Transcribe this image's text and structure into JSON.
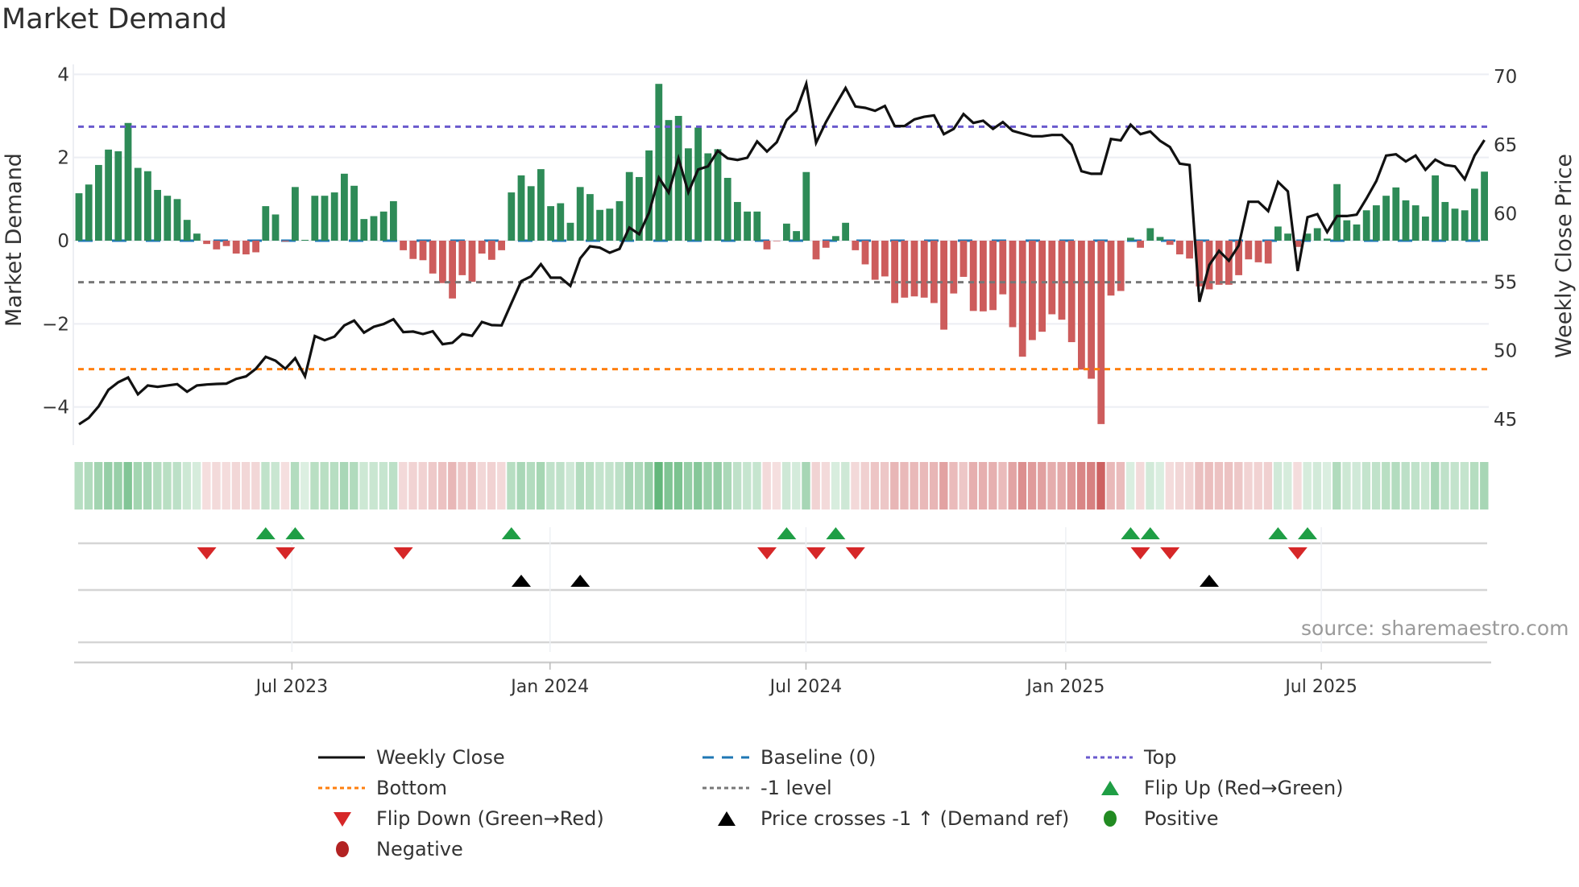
{
  "title": "Market Demand",
  "source": "source: sharemaestro.com",
  "colors": {
    "bar_positive": "#2e8b57",
    "bar_negative": "#cd5c5c",
    "baseline": "#1f77b4",
    "top": "#6a5acd",
    "bottom": "#ff7f0e",
    "minus_one": "#777777",
    "flip_up": "#1f9e45",
    "flip_down": "#d62728",
    "price_cross": "#000000",
    "positive": "#228b22",
    "negative": "#b22222",
    "price_line": "#111111"
  },
  "legend": [
    {
      "label": "Weekly Close",
      "symbol": "solid-line"
    },
    {
      "label": "Baseline (0)",
      "symbol": "dashed-line"
    },
    {
      "label": "Top",
      "symbol": "dotted-line"
    },
    {
      "label": "Bottom",
      "symbol": "dotted-line"
    },
    {
      "label": "-1 level",
      "symbol": "dotted-line"
    },
    {
      "label": "Flip Up (Red→Green)",
      "symbol": "triangle-up"
    },
    {
      "label": "Flip Down (Green→Red)",
      "symbol": "triangle-down"
    },
    {
      "label": "Price crosses -1 ↑ (Demand ref)",
      "symbol": "triangle-up"
    },
    {
      "label": "Positive",
      "symbol": "circle"
    },
    {
      "label": "Negative",
      "symbol": "circle"
    }
  ],
  "chart_data": {
    "type": "bar",
    "title": "Market Demand",
    "ylabel": "Market Demand",
    "y2label": "Weekly Close Price",
    "ylim": [
      -4.8,
      4.4
    ],
    "y2lim": [
      43.6,
      70.8
    ],
    "yticks": [
      {
        "value": 4,
        "label": "4"
      },
      {
        "value": 2,
        "label": "2"
      },
      {
        "value": 0,
        "label": "0"
      },
      {
        "value": -2,
        "label": "−2"
      },
      {
        "value": -4,
        "label": "−4"
      }
    ],
    "y2ticks": [
      {
        "value": 70,
        "label": "70"
      },
      {
        "value": 65,
        "label": "65"
      },
      {
        "value": 60,
        "label": "60"
      },
      {
        "value": 55,
        "label": "55"
      },
      {
        "value": 50,
        "label": "50"
      },
      {
        "value": 45,
        "label": "45"
      }
    ],
    "x_unit": "week index",
    "xticks": [
      {
        "week": 22.67,
        "label": "Jul 2023"
      },
      {
        "week": 48.93,
        "label": "Jan 2024"
      },
      {
        "week": 74.97,
        "label": "Jul 2024"
      },
      {
        "week": 101.4,
        "label": "Jan 2025"
      },
      {
        "week": 127.4,
        "label": "Jul 2025"
      }
    ],
    "levels": {
      "top": 2.74,
      "baseline": 0,
      "minus_one": -1.0,
      "bottom": -3.09
    },
    "demand": [
      1.14,
      1.35,
      1.82,
      2.19,
      2.15,
      2.83,
      1.75,
      1.67,
      1.22,
      1.08,
      1.0,
      0.5,
      0.17,
      -0.08,
      -0.21,
      -0.13,
      -0.31,
      -0.33,
      -0.28,
      0.83,
      0.63,
      -0.02,
      1.29,
      0.02,
      1.08,
      1.08,
      1.16,
      1.61,
      1.32,
      0.52,
      0.59,
      0.7,
      0.95,
      -0.23,
      -0.44,
      -0.47,
      -0.79,
      -1.02,
      -1.39,
      -0.83,
      -0.99,
      -0.31,
      -0.46,
      -0.23,
      1.16,
      1.57,
      1.31,
      1.72,
      0.83,
      0.9,
      0.43,
      1.29,
      1.12,
      0.74,
      0.77,
      0.95,
      1.65,
      1.53,
      2.17,
      3.77,
      2.9,
      3.0,
      2.22,
      2.72,
      2.1,
      2.2,
      1.51,
      0.93,
      0.7,
      0.7,
      -0.21,
      -0.01,
      0.41,
      0.23,
      1.65,
      -0.45,
      -0.17,
      0.11,
      0.43,
      -0.23,
      -0.57,
      -0.94,
      -0.86,
      -1.5,
      -1.37,
      -1.34,
      -1.37,
      -1.5,
      -2.14,
      -1.27,
      -0.87,
      -1.69,
      -1.7,
      -1.67,
      -1.29,
      -2.08,
      -2.79,
      -2.39,
      -2.19,
      -1.77,
      -1.9,
      -2.44,
      -3.1,
      -3.32,
      -4.41,
      -1.32,
      -1.21,
      0.07,
      -0.17,
      0.3,
      0.09,
      -0.1,
      -0.33,
      -0.43,
      -1.1,
      -1.17,
      -1.06,
      -1.06,
      -0.83,
      -0.45,
      -0.52,
      -0.55,
      0.34,
      0.17,
      -0.15,
      0.17,
      0.3,
      0.05,
      1.36,
      0.49,
      0.39,
      0.73,
      0.85,
      1.08,
      1.28,
      0.97,
      0.85,
      0.58,
      1.57,
      0.93,
      0.77,
      0.73,
      1.25,
      1.66
    ],
    "weekly_close": [
      44.62,
      45.09,
      45.93,
      47.14,
      47.69,
      48.04,
      46.81,
      47.46,
      47.36,
      47.46,
      47.55,
      47.0,
      47.46,
      47.53,
      47.57,
      47.59,
      47.94,
      48.12,
      48.67,
      49.55,
      49.26,
      48.67,
      49.45,
      48.12,
      51.06,
      50.76,
      51.02,
      51.84,
      52.19,
      51.31,
      51.74,
      51.94,
      52.29,
      51.35,
      51.39,
      51.21,
      51.41,
      50.47,
      50.57,
      51.21,
      51.08,
      52.09,
      51.86,
      51.84,
      53.46,
      55.07,
      55.42,
      56.3,
      55.32,
      55.32,
      54.72,
      56.73,
      57.61,
      57.51,
      57.14,
      57.42,
      58.98,
      58.49,
      60.06,
      62.62,
      61.53,
      64.03,
      61.55,
      63.21,
      63.44,
      64.58,
      64.03,
      63.91,
      64.07,
      65.26,
      64.52,
      65.2,
      66.81,
      67.51,
      69.47,
      65.17,
      66.67,
      67.94,
      69.16,
      67.81,
      67.71,
      67.49,
      67.85,
      66.38,
      66.38,
      66.87,
      67.06,
      67.16,
      65.79,
      66.18,
      67.26,
      66.61,
      66.77,
      66.18,
      66.67,
      66.03,
      65.83,
      65.64,
      65.64,
      65.73,
      65.73,
      65.01,
      63.09,
      62.9,
      62.9,
      65.44,
      65.34,
      66.48,
      65.79,
      65.99,
      65.3,
      64.85,
      63.64,
      63.54,
      53.56,
      56.24,
      57.28,
      56.56,
      57.67,
      60.86,
      60.86,
      60.18,
      62.31,
      61.62,
      55.81,
      59.73,
      59.96,
      58.65,
      59.82,
      59.82,
      59.92,
      61.1,
      62.37,
      64.23,
      64.32,
      63.8,
      64.23,
      63.19,
      63.93,
      63.54,
      63.44,
      62.5,
      64.23,
      65.36
    ],
    "flip_up_weeks": [
      20,
      23,
      45,
      73,
      78,
      108,
      110,
      123,
      126
    ],
    "flip_down_weeks": [
      14,
      22,
      34,
      71,
      76,
      80,
      109,
      112,
      125
    ],
    "price_cross_weeks": [
      46,
      52,
      116
    ],
    "grid": true,
    "legend_position": "bottom"
  }
}
